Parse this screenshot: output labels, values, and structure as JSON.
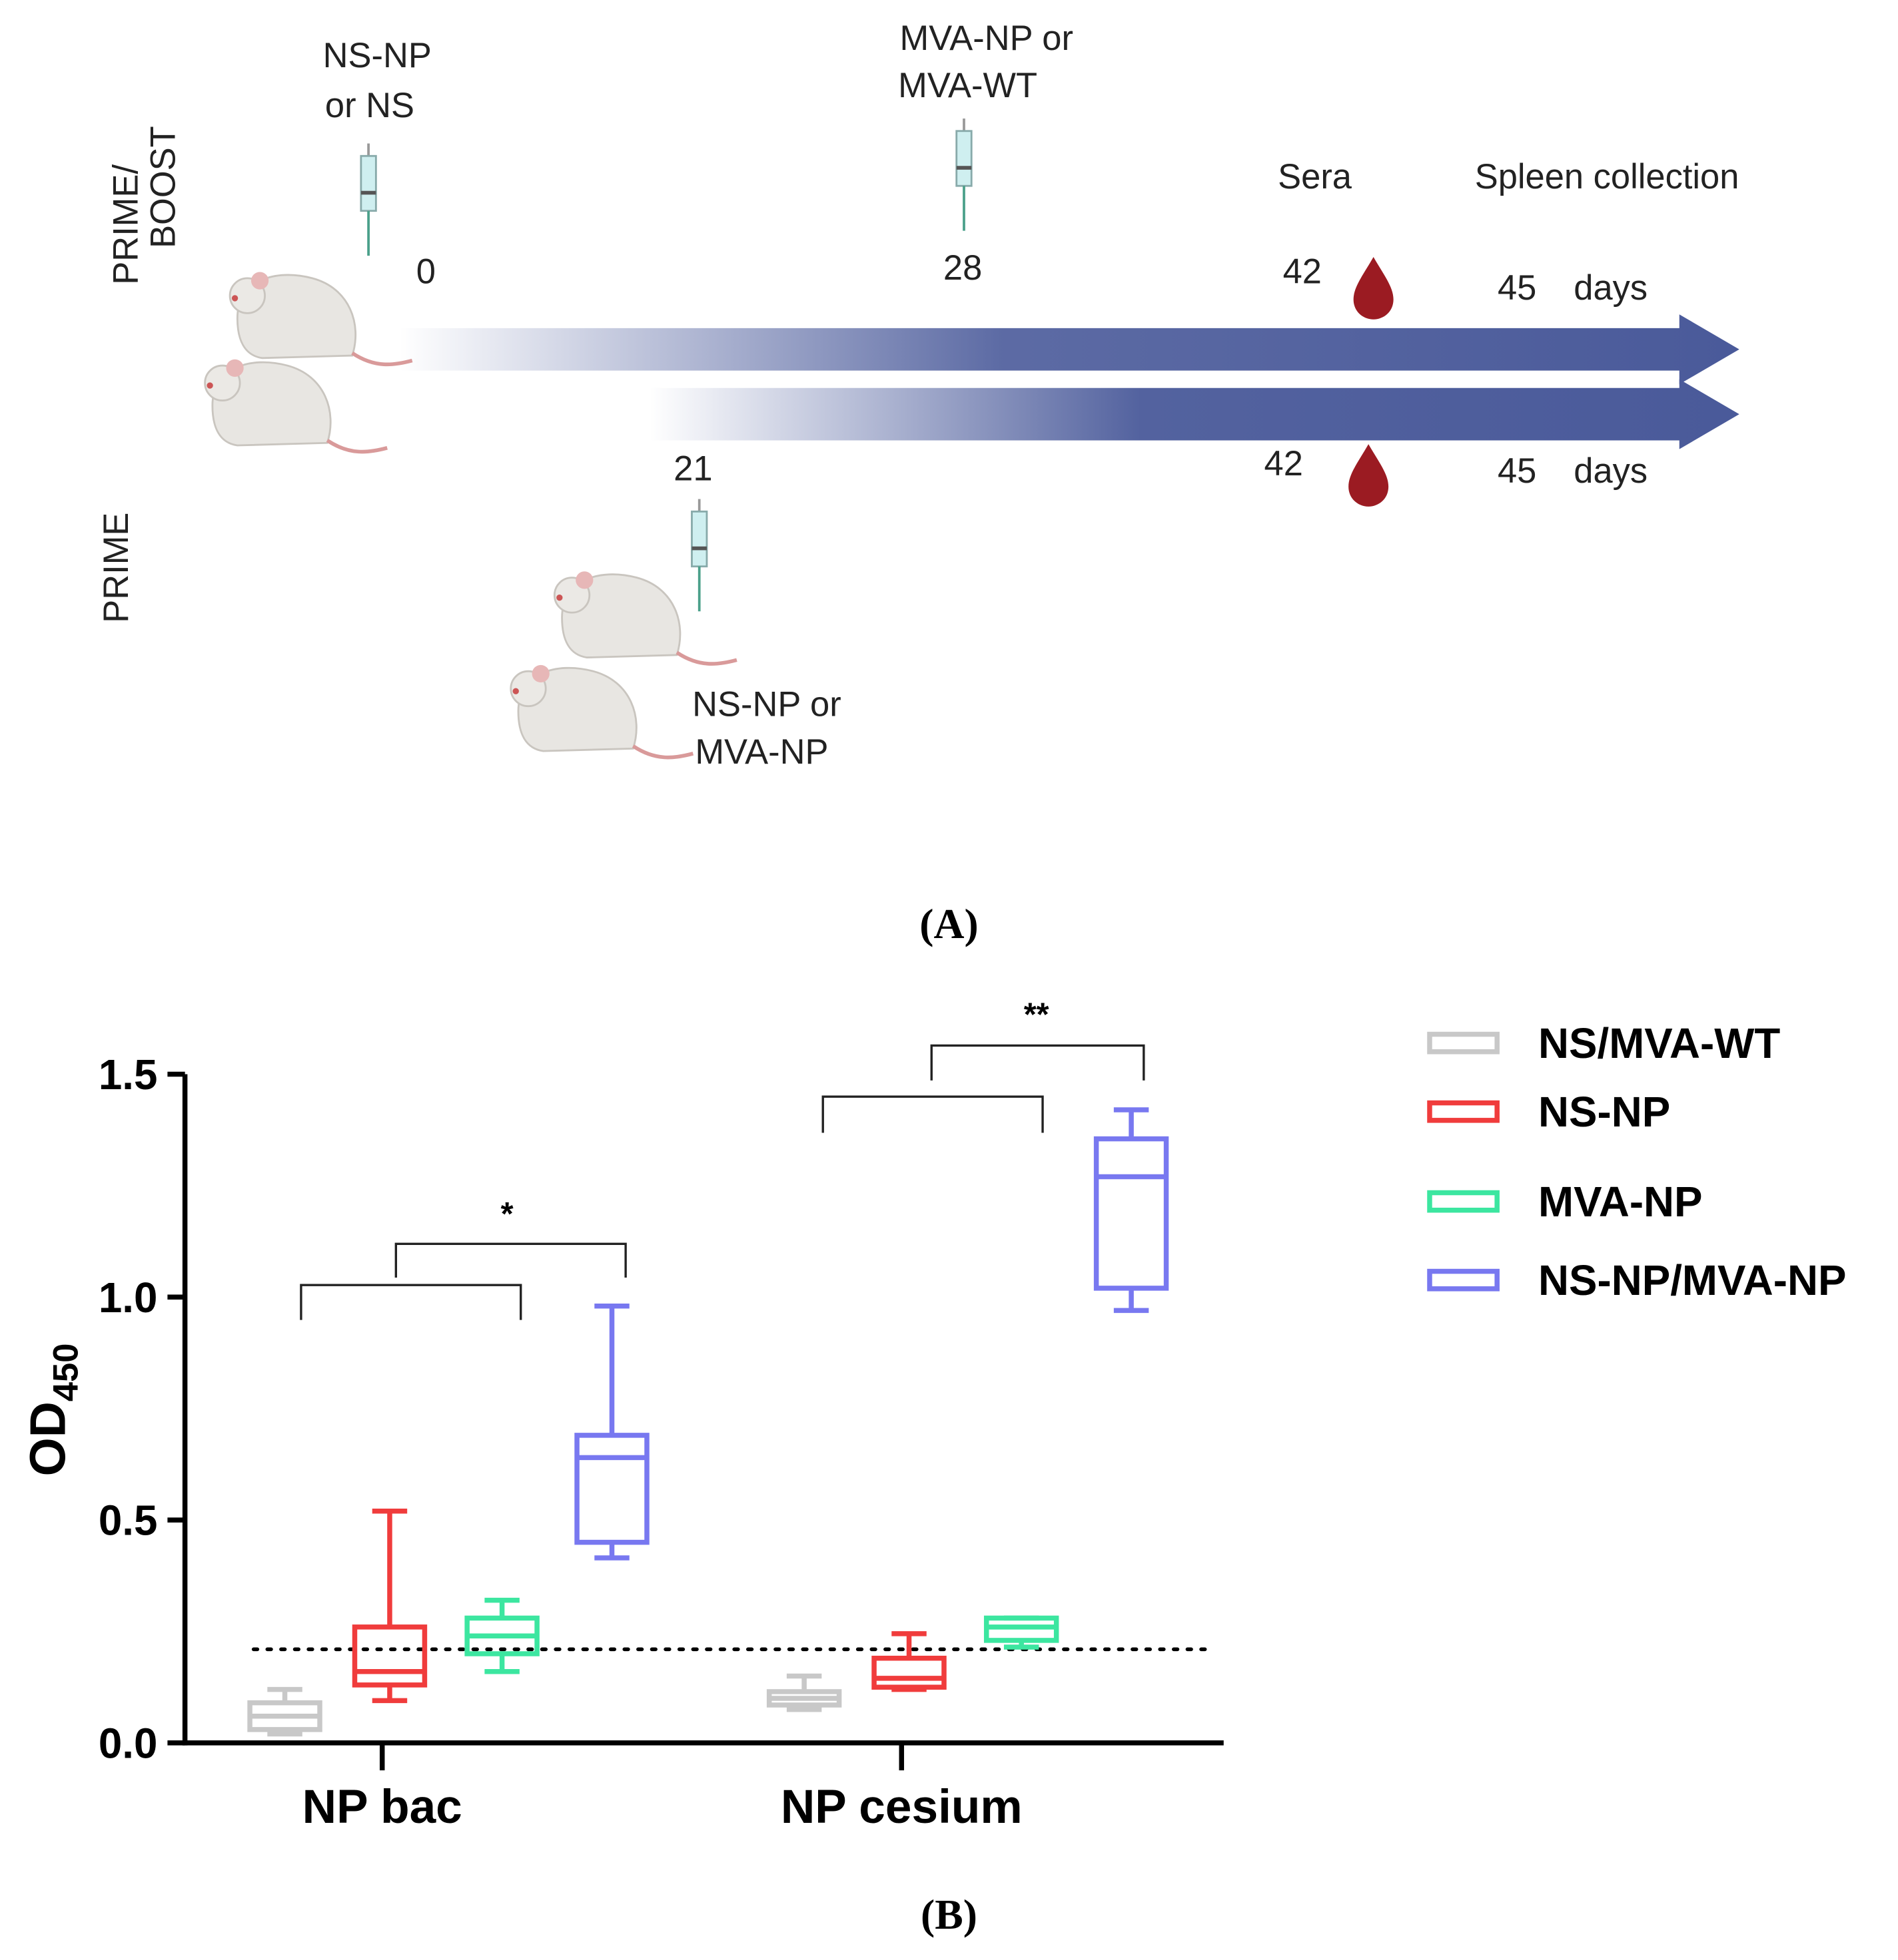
{
  "diagram": {
    "prime_boost": [
      "PRIME/",
      "BOOST"
    ],
    "prime": "PRIME",
    "first_injection": [
      "NS-NP",
      "or NS"
    ],
    "boost_injection": [
      "MVA-NP or",
      "MVA-WT"
    ],
    "prime_injection": [
      "NS-NP or",
      "MVA-NP"
    ],
    "sera": "Sera",
    "spleen": "Spleen collection",
    "top_days": [
      0,
      28,
      42,
      45
    ],
    "bottom_days": [
      21,
      42,
      45
    ],
    "days_unit": "days"
  },
  "panel_labels": [
    "(A)",
    "(B)"
  ],
  "chart_data": {
    "type": "box",
    "ylabel": "OD",
    "ylabel_subscript": "450",
    "categories": [
      "NP bac",
      "NP cesium"
    ],
    "ylim": [
      0,
      1.5
    ],
    "yticks": [
      {
        "value": 0,
        "label": "0.0"
      },
      0.5,
      {
        "value": 1,
        "label": "1.0"
      },
      1.5
    ],
    "reference_line": 0.21,
    "annotations": [
      "*",
      "**"
    ],
    "series": [
      {
        "name": "NS/MVA-WT",
        "color": "#c8c8c8",
        "values": [
          {
            "min": 0.02,
            "q1": 0.03,
            "median": 0.06,
            "q3": 0.09,
            "max": 0.12
          },
          {
            "min": 0.075,
            "q1": 0.085,
            "median": 0.1,
            "q3": 0.115,
            "max": 0.15
          }
        ]
      },
      {
        "name": "NS-NP",
        "color": "#f03c3c",
        "values": [
          {
            "min": 0.095,
            "q1": 0.13,
            "median": 0.16,
            "q3": 0.26,
            "max": 0.52
          },
          {
            "min": 0.12,
            "q1": 0.125,
            "median": 0.145,
            "q3": 0.19,
            "max": 0.245
          }
        ]
      },
      {
        "name": "MVA-NP",
        "color": "#3ce6a0",
        "values": [
          {
            "min": 0.16,
            "q1": 0.2,
            "median": 0.24,
            "q3": 0.28,
            "max": 0.32
          },
          {
            "min": 0.215,
            "q1": 0.23,
            "median": 0.26,
            "q3": 0.28,
            "max": 0.28
          }
        ]
      },
      {
        "name": "NS-NP/MVA-NP",
        "color": "#7878f0",
        "values": [
          {
            "min": 0.415,
            "q1": 0.45,
            "median": 0.64,
            "q3": 0.69,
            "max": 0.98
          },
          {
            "min": 0.97,
            "q1": 1.02,
            "median": 1.27,
            "q3": 1.355,
            "max": 1.42
          }
        ]
      }
    ]
  }
}
